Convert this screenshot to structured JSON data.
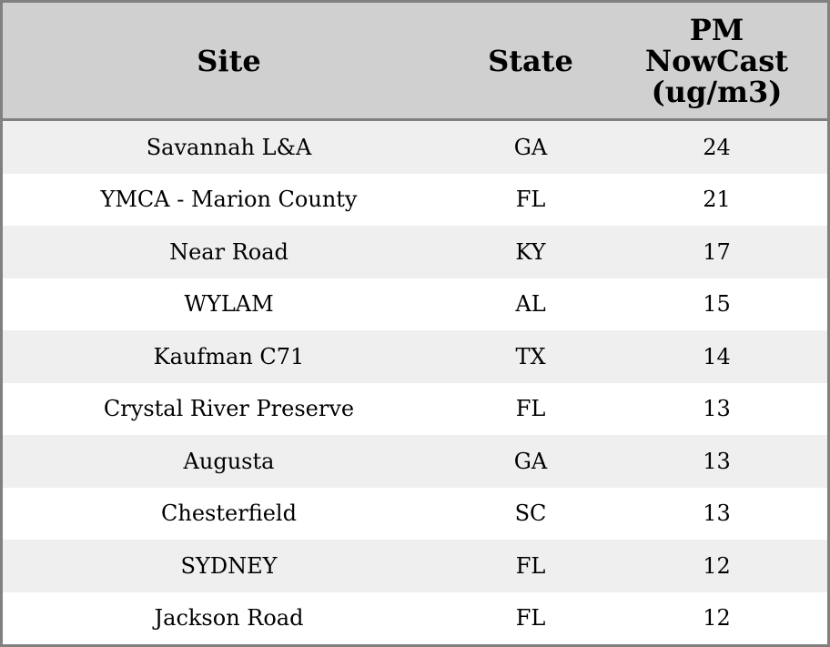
{
  "table": {
    "headers": [
      "Site",
      "State",
      "PM NowCast (ug/m3)"
    ],
    "rows": [
      [
        "Savannah L&A",
        "GA",
        24
      ],
      [
        "YMCA - Marion County",
        "FL",
        21
      ],
      [
        "Near Road",
        "KY",
        17
      ],
      [
        "WYLAM",
        "AL",
        15
      ],
      [
        "Kaufman C71",
        "TX",
        14
      ],
      [
        "Crystal River Preserve",
        "FL",
        13
      ],
      [
        "Augusta",
        "GA",
        13
      ],
      [
        "Chesterfield",
        "SC",
        13
      ],
      [
        "SYDNEY",
        "FL",
        12
      ],
      [
        "Jackson Road",
        "FL",
        12
      ]
    ]
  }
}
